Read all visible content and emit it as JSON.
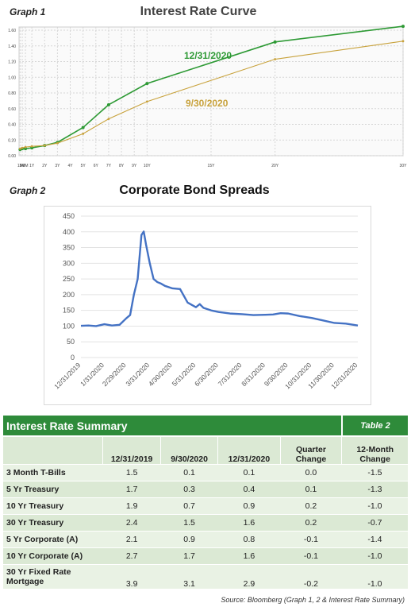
{
  "graph1": {
    "label": "Graph 1",
    "title": "Interest Rate Curve"
  },
  "graph2": {
    "label": "Graph 2",
    "title": "Corporate Bond Spreads"
  },
  "chart_data": [
    {
      "type": "line",
      "title": "Interest Rate Curve",
      "x": [
        "1M",
        "3M",
        "6M",
        "1Y",
        "2Y",
        "3Y",
        "4Y",
        "5Y",
        "6Y",
        "7Y",
        "8Y",
        "9Y",
        "10Y",
        "15Y",
        "20Y",
        "30Y"
      ],
      "x_years": [
        0.0833,
        0.25,
        0.5,
        1,
        2,
        3,
        4,
        5,
        6,
        7,
        8,
        9,
        10,
        15,
        20,
        30
      ],
      "y_ticks": [
        "0.00",
        "0.20",
        "0.40",
        "0.60",
        "0.80",
        "1.00",
        "1.20",
        "1.40",
        "1.60"
      ],
      "ylim": [
        0,
        1.6
      ],
      "grid": true,
      "series": [
        {
          "name": "12/31/2020",
          "color": "#2e9a35",
          "x": [
            0.0833,
            0.25,
            0.5,
            1,
            2,
            3,
            5,
            7,
            10,
            20,
            30
          ],
          "values": [
            0.08,
            0.09,
            0.09,
            0.1,
            0.13,
            0.17,
            0.36,
            0.65,
            0.92,
            1.45,
            1.65
          ]
        },
        {
          "name": "9/30/2020",
          "color": "#c8a23c",
          "x": [
            0.0833,
            0.25,
            0.5,
            1,
            2,
            3,
            5,
            7,
            10,
            20,
            30
          ],
          "values": [
            0.09,
            0.1,
            0.11,
            0.12,
            0.13,
            0.16,
            0.28,
            0.47,
            0.69,
            1.23,
            1.46
          ]
        }
      ]
    },
    {
      "type": "line",
      "title": "Corporate Bond Spreads",
      "ylim": [
        0,
        450
      ],
      "y_ticks": [
        "0",
        "50",
        "100",
        "150",
        "200",
        "250",
        "300",
        "350",
        "400",
        "450"
      ],
      "x_ticks": [
        "12/31/2019",
        "1/31/2020",
        "2/29/2020",
        "3/31/2020",
        "4/30/2020",
        "5/31/2020",
        "6/30/2020",
        "7/31/2020",
        "8/31/2020",
        "9/30/2020",
        "10/31/2020",
        "11/30/2020",
        "12/31/2020"
      ],
      "grid": true,
      "series": [
        {
          "color": "#4472c4",
          "x": [
            "12/31/2019",
            "1/10/2020",
            "1/20/2020",
            "1/31/2020",
            "2/10/2020",
            "2/20/2020",
            "2/29/2020",
            "3/5/2020",
            "3/10/2020",
            "3/15/2020",
            "3/20/2020",
            "3/23/2020",
            "3/26/2020",
            "3/31/2020",
            "4/5/2020",
            "4/10/2020",
            "4/15/2020",
            "4/20/2020",
            "4/30/2020",
            "5/10/2020",
            "5/20/2020",
            "5/31/2020",
            "6/5/2020",
            "6/10/2020",
            "6/20/2020",
            "6/30/2020",
            "7/15/2020",
            "7/31/2020",
            "8/15/2020",
            "8/31/2020",
            "9/10/2020",
            "9/20/2020",
            "9/30/2020",
            "10/15/2020",
            "10/31/2020",
            "11/15/2020",
            "11/30/2020",
            "12/15/2020",
            "12/31/2020"
          ],
          "values": [
            101,
            102,
            100,
            106,
            102,
            104,
            125,
            135,
            200,
            250,
            390,
            401,
            360,
            300,
            250,
            240,
            235,
            228,
            220,
            218,
            175,
            160,
            170,
            158,
            150,
            145,
            140,
            138,
            135,
            136,
            137,
            141,
            140,
            132,
            126,
            118,
            110,
            108,
            102
          ]
        }
      ]
    }
  ],
  "table": {
    "title": "Interest Rate Summary",
    "tag": "Table 2",
    "columns": [
      "",
      "12/31/2019",
      "9/30/2020",
      "12/31/2020",
      "Quarter Change",
      "12-Month Change"
    ],
    "rows": [
      {
        "name": "3 Month T-Bills",
        "v1": "1.5",
        "v2": "0.1",
        "v3": "0.1",
        "q": "0.0",
        "m": "-1.5"
      },
      {
        "name": "5 Yr Treasury",
        "v1": "1.7",
        "v2": "0.3",
        "v3": "0.4",
        "q": "0.1",
        "m": "-1.3"
      },
      {
        "name": "10 Yr Treasury",
        "v1": "1.9",
        "v2": "0.7",
        "v3": "0.9",
        "q": "0.2",
        "m": "-1.0"
      },
      {
        "name": "30 Yr Treasury",
        "v1": "2.4",
        "v2": "1.5",
        "v3": "1.6",
        "q": "0.2",
        "m": "-0.7"
      },
      {
        "name": "5 Yr Corporate (A)",
        "v1": "2.1",
        "v2": "0.9",
        "v3": "0.8",
        "q": "-0.1",
        "m": "-1.4"
      },
      {
        "name": "10 Yr Corporate (A)",
        "v1": "2.7",
        "v2": "1.7",
        "v3": "1.6",
        "q": "-0.1",
        "m": "-1.0"
      },
      {
        "name": "30 Yr Fixed Rate Mortgage",
        "v1": "3.9",
        "v2": "3.1",
        "v3": "2.9",
        "q": "-0.2",
        "m": "-1.0"
      }
    ]
  },
  "source": "Source: Bloomberg (Graph 1, 2 & Interest Rate Summary)"
}
